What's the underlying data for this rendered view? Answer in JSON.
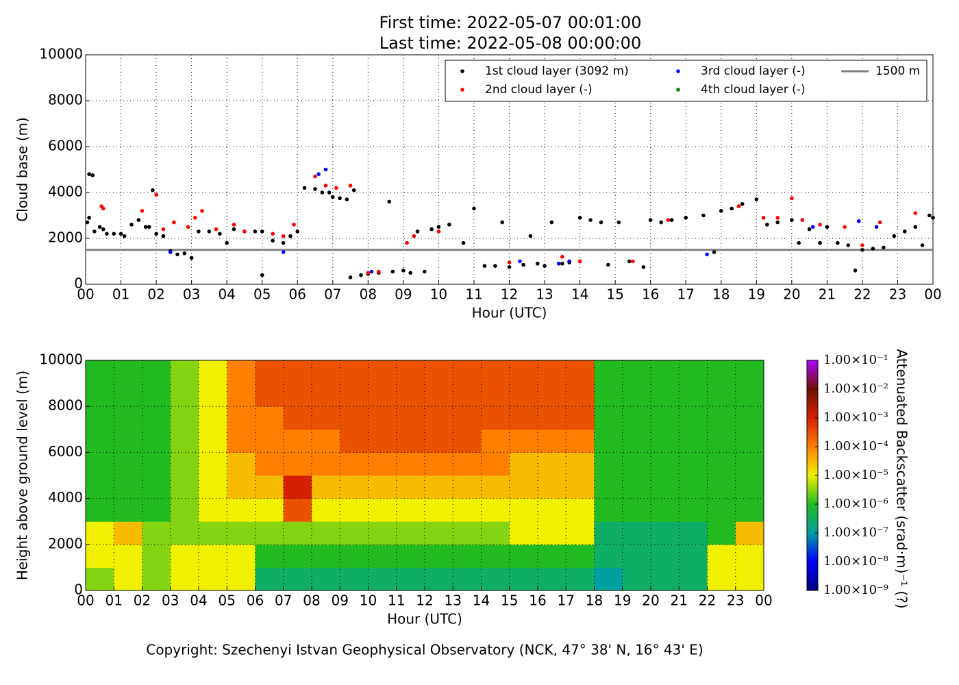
{
  "title_lines": [
    "First time: 2022-05-07 00:01:00",
    "Last time: 2022-05-08 00:00:00"
  ],
  "footer": "Copyright: Szechenyi Istvan Geophysical Observatory (NCK, 47° 38' N, 16° 43' E)",
  "chart_data": [
    {
      "type": "scatter",
      "xlabel": "Hour (UTC)",
      "ylabel": "Cloud base (m)",
      "grid": true,
      "legend": "upper right",
      "xlim": [
        0,
        24
      ],
      "ylim": [
        0,
        10000
      ],
      "yticks": [
        0,
        2000,
        4000,
        6000,
        8000,
        10000
      ],
      "xticks": [
        {
          "value": 0,
          "label": "00"
        },
        {
          "value": 1,
          "label": "01"
        },
        {
          "value": 2,
          "label": "02"
        },
        {
          "value": 3,
          "label": "03"
        },
        {
          "value": 4,
          "label": "04"
        },
        {
          "value": 5,
          "label": "05"
        },
        {
          "value": 6,
          "label": "06"
        },
        {
          "value": 7,
          "label": "07"
        },
        {
          "value": 8,
          "label": "08"
        },
        {
          "value": 9,
          "label": "09"
        },
        10,
        11,
        12,
        13,
        14,
        15,
        16,
        17,
        18,
        19,
        20,
        21,
        22,
        23,
        {
          "value": 24,
          "label": "00"
        }
      ],
      "hlines": [
        {
          "value": 1500,
          "label": "1500 m",
          "color": "#808080"
        }
      ],
      "series": [
        {
          "name": "1st cloud layer (3092 m)",
          "color": "#000000",
          "x": [
            0.05,
            0.1,
            0.1,
            0.2,
            0.25,
            0.4,
            0.5,
            0.6,
            0.8,
            1,
            1.1,
            1.3,
            1.5,
            1.7,
            1.8,
            1.9,
            2,
            2.2,
            2.4,
            2.6,
            2.8,
            3,
            3.2,
            3.5,
            3.8,
            4,
            4.2,
            4.5,
            4.8,
            5,
            5,
            5.3,
            5.6,
            5.8,
            6,
            6.2,
            6.5,
            6.7,
            6.9,
            7,
            7.2,
            7.4,
            7.6,
            7.5,
            7.8,
            8,
            8.3,
            8.6,
            8.7,
            9,
            9.2,
            9.4,
            9.6,
            9.8,
            10,
            10.3,
            10.7,
            11,
            11.3,
            11.6,
            11.8,
            12,
            12.4,
            12.6,
            12.8,
            13,
            13.2,
            13.5,
            13.7,
            14,
            14.3,
            14.6,
            14.8,
            15.1,
            15.4,
            15.8,
            16,
            16.3,
            16.6,
            17,
            17.5,
            17.8,
            18,
            18.3,
            18.6,
            19,
            19.3,
            19.6,
            20,
            20.2,
            20.5,
            20.8,
            21,
            21.3,
            21.6,
            21.8,
            22,
            22.3,
            22.6,
            22.9,
            23.2,
            23.5,
            23.7,
            23.9,
            24
          ],
          "values": [
            2700,
            2900,
            4800,
            4750,
            2300,
            2500,
            2400,
            2200,
            2200,
            2200,
            2100,
            2600,
            2800,
            2500,
            2500,
            4100,
            2200,
            2100,
            1450,
            1300,
            1350,
            1150,
            2300,
            2300,
            2200,
            1800,
            2400,
            2300,
            2300,
            2300,
            400,
            1900,
            1800,
            2100,
            2300,
            4200,
            4150,
            4000,
            4000,
            3800,
            3750,
            3700,
            4100,
            300,
            400,
            450,
            500,
            3600,
            550,
            600,
            500,
            2300,
            550,
            2400,
            2500,
            2600,
            1800,
            3300,
            800,
            800,
            2700,
            750,
            850,
            2100,
            900,
            800,
            2700,
            900,
            950,
            2900,
            2800,
            2700,
            850,
            2700,
            1000,
            750,
            2800,
            2700,
            2800,
            2900,
            3000,
            1400,
            3200,
            3300,
            3500,
            3700,
            2600,
            2700,
            2800,
            1800,
            2400,
            1800,
            2500,
            1800,
            1700,
            600,
            1500,
            1550,
            1600,
            2100,
            2300,
            2500,
            1700,
            3000,
            2900
          ]
        },
        {
          "name": "2nd cloud layer (-)",
          "color": "#ff0000",
          "x": [
            0.45,
            0.5,
            1.6,
            2,
            2.2,
            2.5,
            2.9,
            3.1,
            3.3,
            3.7,
            4.2,
            4.5,
            5.3,
            5.6,
            5.9,
            6.5,
            6.8,
            7.1,
            7.5,
            8,
            8.3,
            9.1,
            9.3,
            10,
            12,
            13.5,
            14,
            15.5,
            16.5,
            18.5,
            19.2,
            19.6,
            20,
            20.3,
            20.8,
            21.5,
            22,
            22.5,
            23.5
          ],
          "values": [
            3400,
            3300,
            3200,
            3900,
            2400,
            2700,
            2500,
            2900,
            3200,
            2400,
            2600,
            2300,
            2200,
            2100,
            2600,
            4700,
            4300,
            4200,
            4300,
            500,
            550,
            1800,
            2100,
            2300,
            950,
            1200,
            1000,
            1000,
            2800,
            3400,
            2900,
            2900,
            3750,
            2800,
            2600,
            2500,
            1700,
            2700,
            3100
          ]
        },
        {
          "name": "3rd cloud layer (-)",
          "color": "#0000ff",
          "x": [
            2.4,
            5.6,
            6.6,
            6.8,
            8.1,
            12.3,
            13.4,
            13.7,
            17.6,
            20.6,
            21.9,
            22.4
          ],
          "values": [
            1400,
            1400,
            4800,
            5000,
            550,
            1000,
            900,
            1000,
            1300,
            2500,
            2750,
            2500
          ]
        },
        {
          "name": "4th cloud layer (-)",
          "color": "#008000",
          "x": [],
          "values": []
        }
      ]
    },
    {
      "type": "heatmap",
      "xlabel": "Hour (UTC)",
      "ylabel": "Height above ground level (m)",
      "grid": true,
      "colorbar_label": "Attenuated Backscatter (srad·m)⁻¹ (?)",
      "colorbar_log": true,
      "xlim": [
        0,
        24
      ],
      "ylim": [
        0,
        10000
      ],
      "clim": [
        1e-09,
        0.1
      ],
      "yticks": [
        0,
        2000,
        4000,
        6000,
        8000,
        10000
      ],
      "xticks": [
        {
          "value": 0,
          "label": "00"
        },
        {
          "value": 1,
          "label": "01"
        },
        {
          "value": 2,
          "label": "02"
        },
        {
          "value": 3,
          "label": "03"
        },
        {
          "value": 4,
          "label": "04"
        },
        {
          "value": 5,
          "label": "05"
        },
        {
          "value": 6,
          "label": "06"
        },
        {
          "value": 7,
          "label": "07"
        },
        {
          "value": 8,
          "label": "08"
        },
        {
          "value": 9,
          "label": "09"
        },
        10,
        11,
        12,
        13,
        14,
        15,
        16,
        17,
        18,
        19,
        20,
        21,
        22,
        23,
        {
          "value": 24,
          "label": "00"
        }
      ],
      "cticks": [
        {
          "value": 1e-09,
          "label": "1.00×10⁻⁹"
        },
        {
          "value": 1e-08,
          "label": "1.00×10⁻⁸"
        },
        {
          "value": 1e-07,
          "label": "1.00×10⁻⁷"
        },
        {
          "value": 1e-06,
          "label": "1.00×10⁻⁶"
        },
        {
          "value": 1e-05,
          "label": "1.00×10⁻⁵"
        },
        {
          "value": 0.0001,
          "label": "1.00×10⁻⁴"
        },
        {
          "value": 0.001,
          "label": "1.00×10⁻³"
        },
        {
          "value": 0.01,
          "label": "1.00×10⁻²"
        },
        {
          "value": 0.1,
          "label": "1.00×10⁻¹"
        }
      ],
      "colormap": [
        "#000080",
        "#0000ff",
        "#00a0a0",
        "#22bb22",
        "#f0f000",
        "#ff8000",
        "#d42000",
        "#701000",
        "#b000ff"
      ],
      "xbins": [
        0,
        1,
        2,
        3,
        4,
        5,
        6,
        7,
        8,
        9,
        10,
        11,
        12,
        13,
        14,
        15,
        16,
        17,
        18,
        19,
        20,
        21,
        22,
        23,
        24
      ],
      "ybins": [
        0,
        1000,
        2000,
        3000,
        4000,
        5000,
        6000,
        7000,
        8000,
        9000,
        10000
      ],
      "values": [
        [
          3e-06,
          1e-05,
          3e-06,
          1e-05,
          1e-05,
          1e-05,
          3e-07,
          3e-07,
          3e-07,
          3e-07,
          3e-07,
          3e-07,
          3e-07,
          3e-07,
          3e-07,
          3e-07,
          3e-07,
          3e-07,
          1e-07,
          3e-07,
          3e-07,
          3e-07,
          1e-05,
          1e-05
        ],
        [
          1e-05,
          1e-05,
          3e-06,
          1e-05,
          1e-05,
          1e-05,
          1e-06,
          1e-06,
          1e-06,
          1e-06,
          1e-06,
          1e-06,
          1e-06,
          1e-06,
          1e-06,
          1e-06,
          1e-06,
          1e-06,
          3e-07,
          3e-07,
          3e-07,
          3e-07,
          1e-05,
          1e-05
        ],
        [
          1e-05,
          3e-05,
          3e-06,
          3e-06,
          3e-06,
          3e-06,
          3e-06,
          3e-06,
          3e-06,
          3e-06,
          3e-06,
          3e-06,
          3e-06,
          3e-06,
          3e-06,
          1e-05,
          1e-05,
          1e-05,
          3e-07,
          3e-07,
          3e-07,
          3e-07,
          1e-06,
          3e-05
        ],
        [
          1e-06,
          1e-06,
          1e-06,
          3e-06,
          1e-05,
          1e-05,
          1e-05,
          0.0003,
          1e-05,
          1e-05,
          1e-05,
          1e-05,
          1e-05,
          1e-05,
          1e-05,
          1e-05,
          1e-05,
          1e-05,
          1e-06,
          1e-06,
          1e-06,
          1e-06,
          1e-06,
          1e-06
        ],
        [
          1e-06,
          1e-06,
          1e-06,
          3e-06,
          1e-05,
          3e-05,
          3e-05,
          0.001,
          3e-05,
          3e-05,
          3e-05,
          3e-05,
          3e-05,
          3e-05,
          3e-05,
          3e-05,
          3e-05,
          3e-05,
          1e-06,
          1e-06,
          1e-06,
          1e-06,
          1e-06,
          1e-06
        ],
        [
          1e-06,
          1e-06,
          1e-06,
          3e-06,
          1e-05,
          3e-05,
          0.0001,
          0.0001,
          0.0001,
          0.0001,
          0.0001,
          0.0001,
          0.0001,
          0.0001,
          0.0001,
          3e-05,
          3e-05,
          3e-05,
          1e-06,
          1e-06,
          1e-06,
          1e-06,
          1e-06,
          1e-06
        ],
        [
          1e-06,
          1e-06,
          1e-06,
          3e-06,
          1e-05,
          0.0001,
          0.0001,
          0.0001,
          0.0001,
          0.0003,
          0.0003,
          0.0003,
          0.0003,
          0.0003,
          0.0001,
          0.0001,
          0.0001,
          0.0001,
          1e-06,
          1e-06,
          1e-06,
          1e-06,
          1e-06,
          1e-06
        ],
        [
          1e-06,
          1e-06,
          1e-06,
          3e-06,
          1e-05,
          0.0001,
          0.0001,
          0.0003,
          0.0003,
          0.0003,
          0.0003,
          0.0003,
          0.0003,
          0.0003,
          0.0003,
          0.0003,
          0.0003,
          0.0003,
          1e-06,
          1e-06,
          1e-06,
          1e-06,
          1e-06,
          1e-06
        ],
        [
          1e-06,
          1e-06,
          1e-06,
          3e-06,
          1e-05,
          0.0001,
          0.0003,
          0.0003,
          0.0003,
          0.0003,
          0.0003,
          0.0003,
          0.0003,
          0.0003,
          0.0003,
          0.0003,
          0.0003,
          0.0003,
          1e-06,
          1e-06,
          1e-06,
          1e-06,
          1e-06,
          1e-06
        ],
        [
          1e-06,
          1e-06,
          1e-06,
          3e-06,
          1e-05,
          0.0001,
          0.0003,
          0.0003,
          0.0003,
          0.0003,
          0.0003,
          0.0003,
          0.0003,
          0.0003,
          0.0003,
          0.0003,
          0.0003,
          0.0003,
          1e-06,
          1e-06,
          1e-06,
          1e-06,
          1e-06,
          1e-06
        ]
      ]
    }
  ]
}
